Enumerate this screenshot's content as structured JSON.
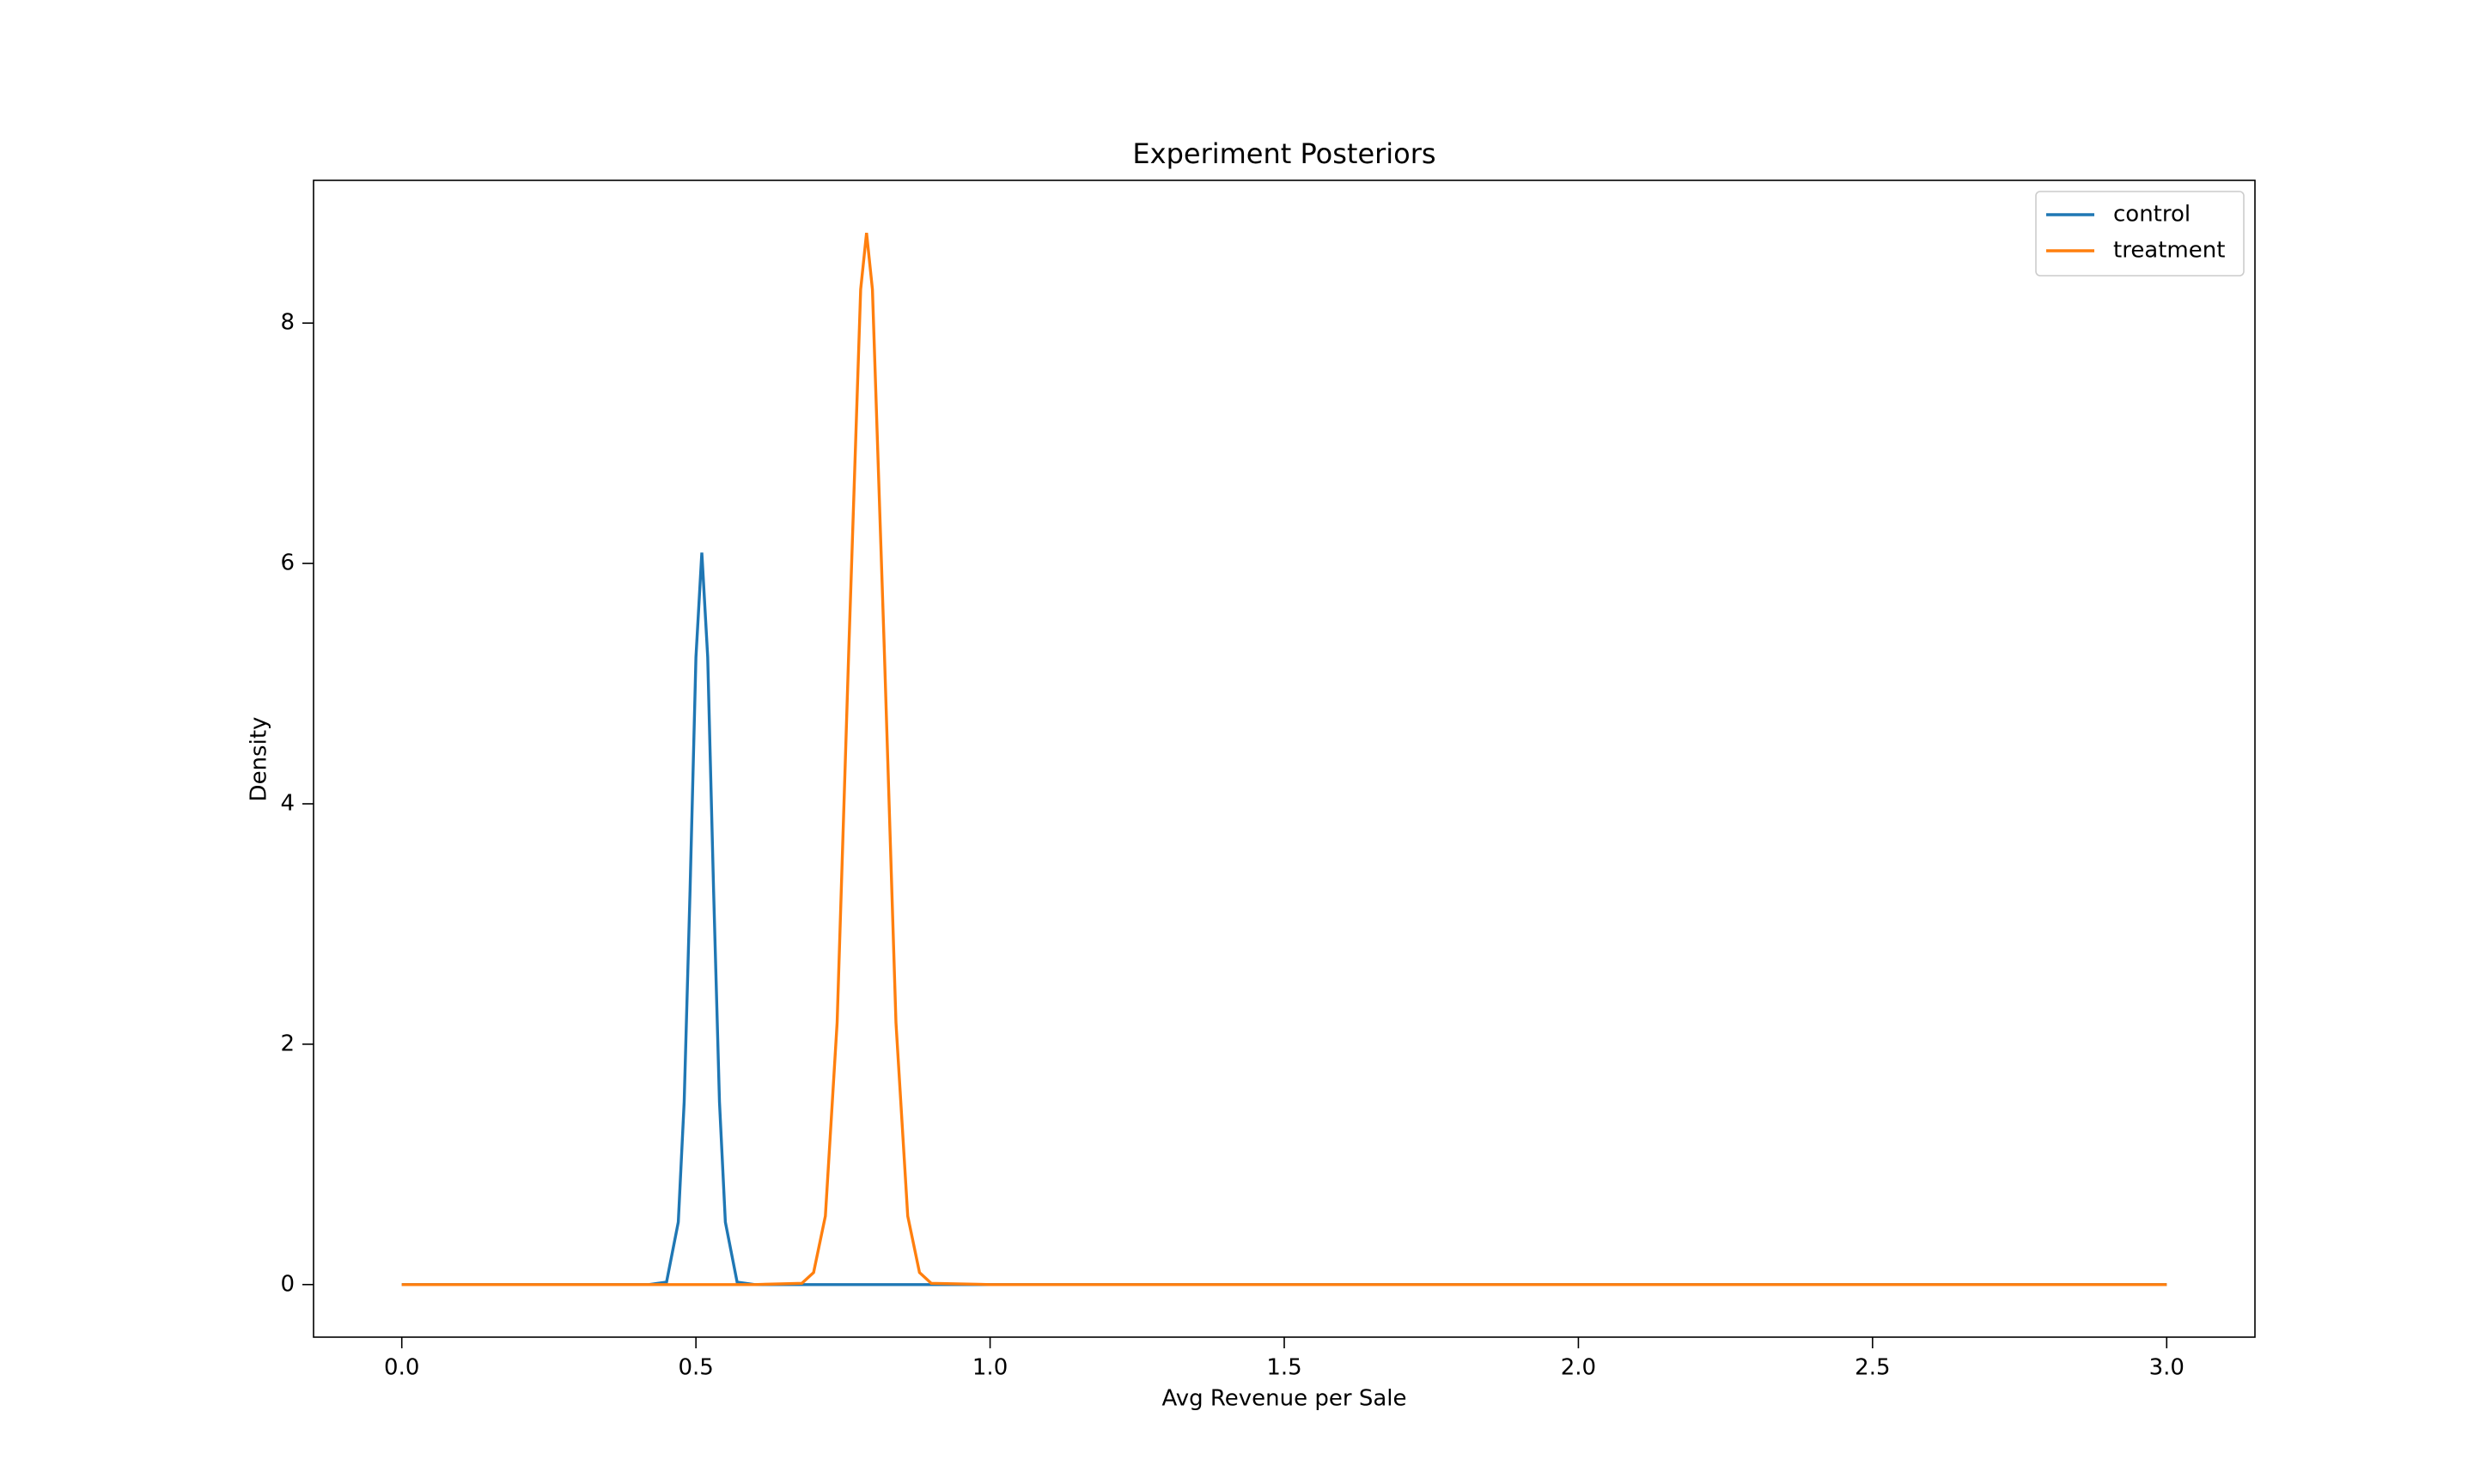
{
  "chart_data": {
    "type": "line",
    "title": "Experiment Posteriors",
    "x_label": "Avg Revenue per Sale",
    "y_label": "Density",
    "x": [
      0,
      0.42,
      0.45,
      0.47,
      0.48,
      0.49,
      0.5,
      0.51,
      0.52,
      0.53,
      0.54,
      0.55,
      0.57,
      0.6,
      0.68,
      0.7,
      0.72,
      0.74,
      0.76,
      0.78,
      0.79,
      0.8,
      0.82,
      0.84,
      0.86,
      0.88,
      0.9,
      1.0,
      3.0
    ],
    "series": [
      {
        "name": "control",
        "color": "#1f77b4",
        "values": [
          0,
          0,
          0.02,
          0.52,
          1.52,
          3.28,
          5.22,
          6.09,
          5.22,
          3.28,
          1.52,
          0.52,
          0.02,
          0,
          0,
          0,
          0,
          0,
          0,
          0,
          0,
          0,
          0,
          0,
          0,
          0,
          0,
          0,
          0
        ]
      },
      {
        "name": "treatment",
        "color": "#ff7f0e",
        "values": [
          0,
          0,
          0,
          0,
          0,
          0,
          0,
          0,
          0,
          0,
          0,
          0,
          0,
          0,
          0.01,
          0.1,
          0.57,
          2.18,
          5.31,
          8.28,
          8.75,
          8.28,
          5.31,
          2.18,
          0.57,
          0.1,
          0.01,
          0,
          0
        ]
      }
    ],
    "xlim": [
      -0.15,
      3.15
    ],
    "ylim": [
      -0.4375,
      9.1875
    ],
    "xticks": [
      {
        "value": 0,
        "label": "0.0"
      },
      {
        "value": 0.5,
        "label": "0.5"
      },
      {
        "value": 1,
        "label": "1.0"
      },
      {
        "value": 1.5,
        "label": "1.5"
      },
      {
        "value": 2,
        "label": "2.0"
      },
      {
        "value": 2.5,
        "label": "2.5"
      },
      {
        "value": 3,
        "label": "3.0"
      }
    ],
    "yticks": [
      0,
      2,
      4,
      6,
      8
    ],
    "grid": false,
    "legend": "upper right"
  }
}
